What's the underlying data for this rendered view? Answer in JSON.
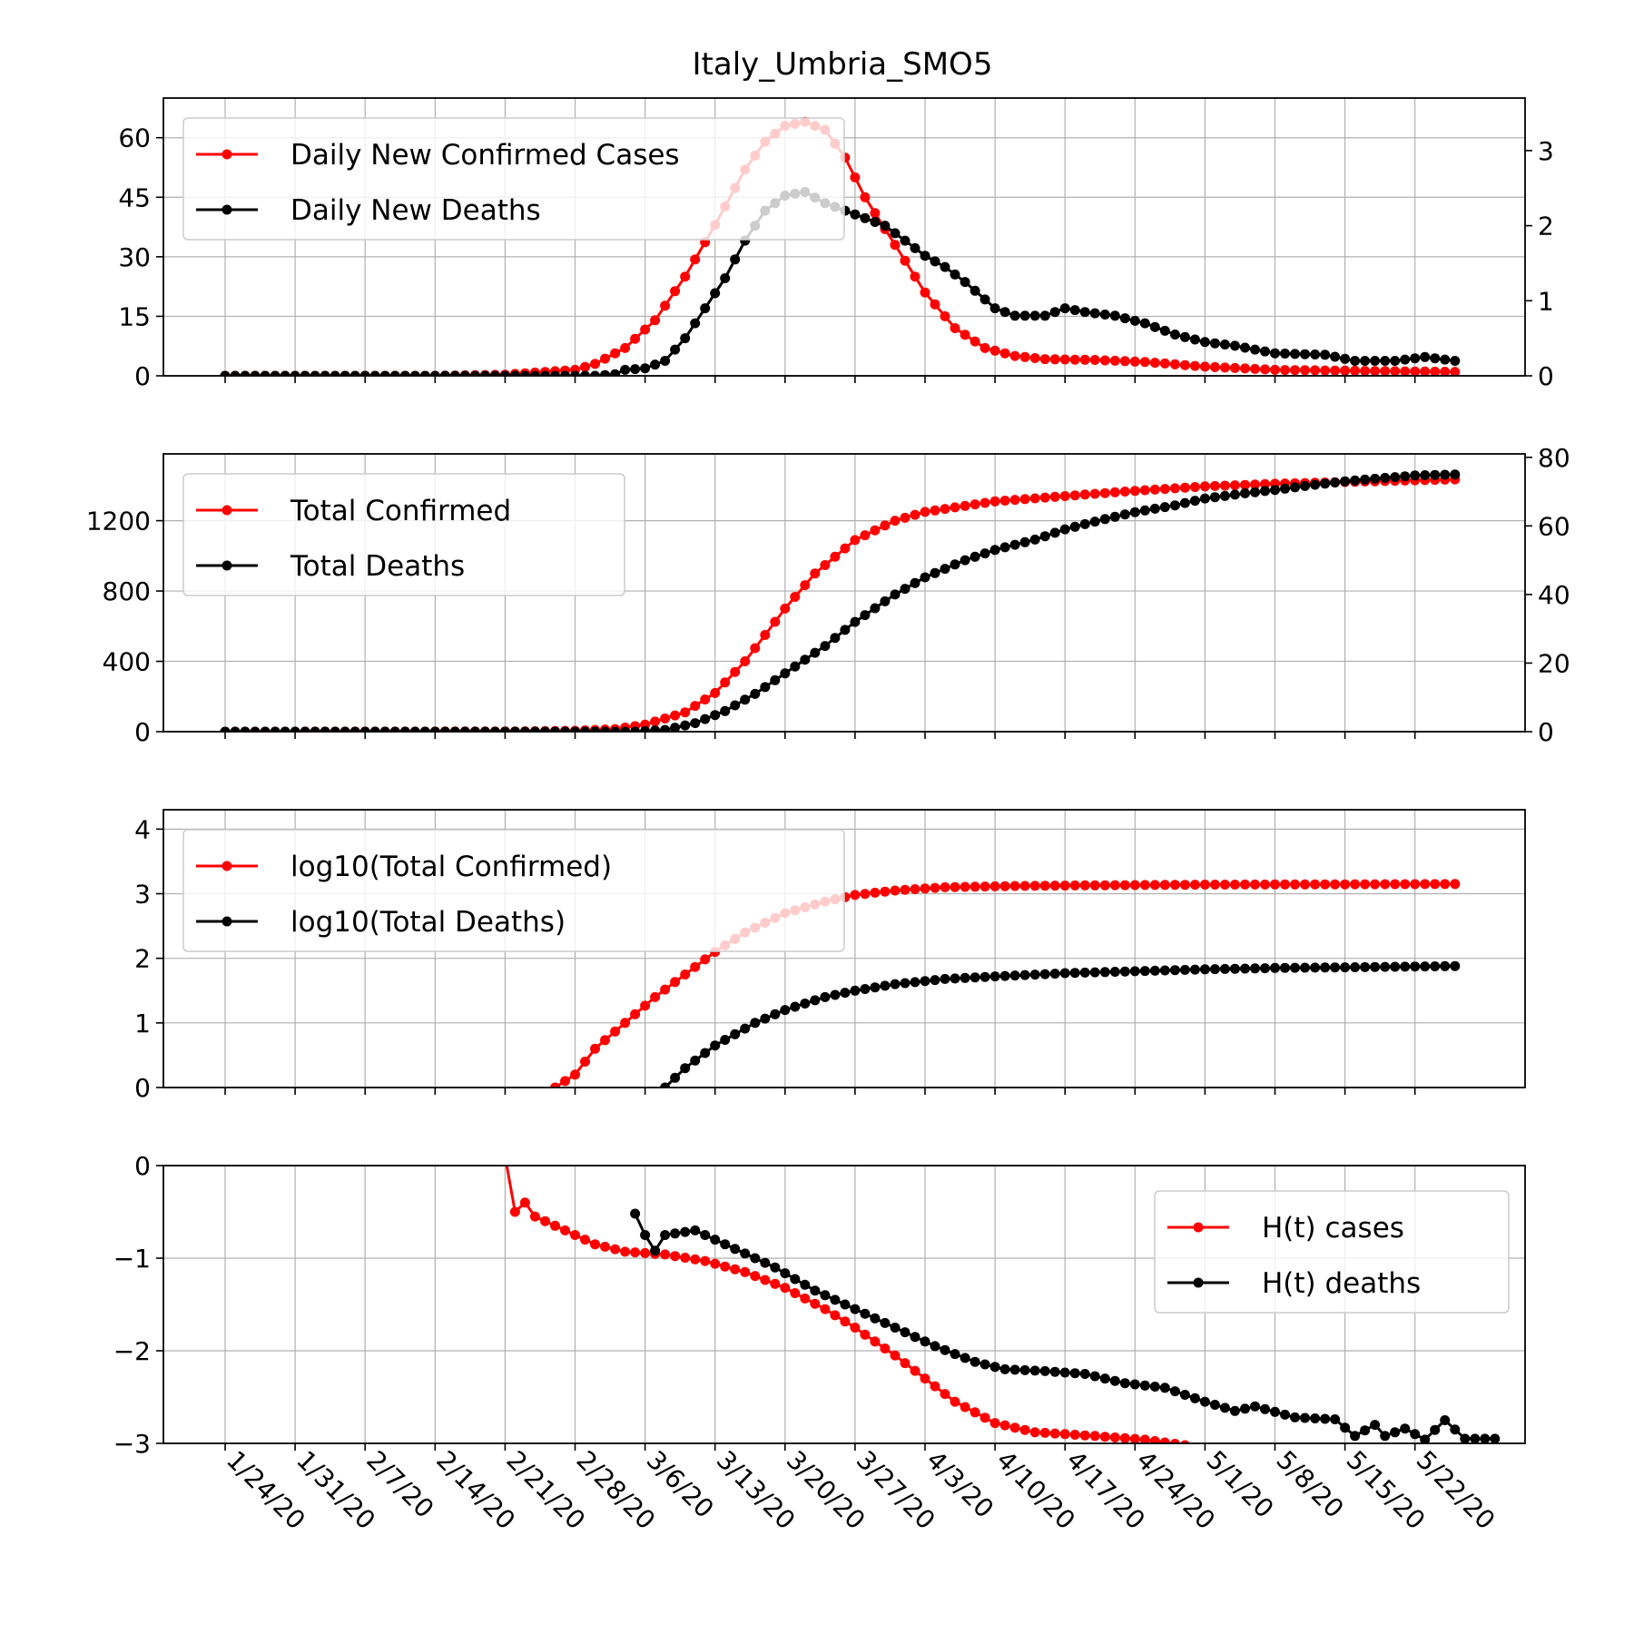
{
  "chart_data": {
    "title": "Italy_Umbria_SMO5",
    "type": "line",
    "x_start": "1/24/20",
    "x_end": "5/26/20",
    "x_tick_labels": [
      "1/24/20",
      "1/31/20",
      "2/7/20",
      "2/14/20",
      "2/21/20",
      "2/28/20",
      "3/6/20",
      "3/13/20",
      "3/20/20",
      "3/27/20",
      "4/3/20",
      "4/10/20",
      "4/17/20",
      "4/24/20",
      "5/1/20",
      "5/8/20",
      "5/15/20",
      "5/22/20"
    ],
    "grid": true,
    "colors": {
      "cases": "#ff0000",
      "deaths": "#000000"
    },
    "panels": [
      {
        "legend_position": "upper-left",
        "left_ylim": [
          0,
          70
        ],
        "left_ticks": [
          0,
          15,
          30,
          45,
          60
        ],
        "right_ylim": [
          0,
          3.7
        ],
        "right_ticks": [
          0,
          1,
          2,
          3
        ],
        "series": [
          {
            "name": "Daily New Confirmed Cases",
            "axis": "left",
            "points": [
              [
                "1/24/20",
                0
              ],
              [
                "2/14/20",
                0
              ],
              [
                "2/21/20",
                0.3
              ],
              [
                "2/28/20",
                1.5
              ],
              [
                "3/1/20",
                3
              ],
              [
                "3/4/20",
                7
              ],
              [
                "3/7/20",
                14
              ],
              [
                "3/10/20",
                25
              ],
              [
                "3/13/20",
                38
              ],
              [
                "3/16/20",
                52
              ],
              [
                "3/18/20",
                59
              ],
              [
                "3/20/20",
                63
              ],
              [
                "3/22/20",
                64
              ],
              [
                "3/24/20",
                62
              ],
              [
                "3/26/20",
                55
              ],
              [
                "3/28/20",
                45
              ],
              [
                "3/31/20",
                33
              ],
              [
                "4/3/20",
                21
              ],
              [
                "4/6/20",
                12
              ],
              [
                "4/9/20",
                7
              ],
              [
                "4/12/20",
                5
              ],
              [
                "4/15/20",
                4.2
              ],
              [
                "4/20/20",
                4
              ],
              [
                "4/25/20",
                3.5
              ],
              [
                "5/1/20",
                2.3
              ],
              [
                "5/8/20",
                1.5
              ],
              [
                "5/15/20",
                1.3
              ],
              [
                "5/22/20",
                1.1
              ],
              [
                "5/26/20",
                1
              ]
            ]
          },
          {
            "name": "Daily New Deaths",
            "axis": "right",
            "points": [
              [
                "1/24/20",
                0
              ],
              [
                "3/1/20",
                0
              ],
              [
                "3/3/20",
                0.02
              ],
              [
                "3/4/20",
                0.08
              ],
              [
                "3/6/20",
                0.1
              ],
              [
                "3/8/20",
                0.2
              ],
              [
                "3/10/20",
                0.5
              ],
              [
                "3/12/20",
                0.9
              ],
              [
                "3/14/20",
                1.3
              ],
              [
                "3/16/20",
                1.8
              ],
              [
                "3/18/20",
                2.2
              ],
              [
                "3/20/20",
                2.4
              ],
              [
                "3/22/20",
                2.45
              ],
              [
                "3/24/20",
                2.3
              ],
              [
                "3/26/20",
                2.2
              ],
              [
                "3/28/20",
                2.1
              ],
              [
                "3/30/20",
                2
              ],
              [
                "4/1/20",
                1.8
              ],
              [
                "4/3/20",
                1.6
              ],
              [
                "4/5/20",
                1.45
              ],
              [
                "4/7/20",
                1.25
              ],
              [
                "4/10/20",
                0.9
              ],
              [
                "4/12/20",
                0.8
              ],
              [
                "4/15/20",
                0.8
              ],
              [
                "4/17/20",
                0.9
              ],
              [
                "4/19/20",
                0.85
              ],
              [
                "4/22/20",
                0.8
              ],
              [
                "4/25/20",
                0.7
              ],
              [
                "4/28/20",
                0.55
              ],
              [
                "5/1/20",
                0.45
              ],
              [
                "5/4/20",
                0.4
              ],
              [
                "5/8/20",
                0.3
              ],
              [
                "5/13/20",
                0.28
              ],
              [
                "5/16/20",
                0.2
              ],
              [
                "5/20/20",
                0.2
              ],
              [
                "5/23/20",
                0.25
              ],
              [
                "5/26/20",
                0.2
              ]
            ]
          }
        ]
      },
      {
        "legend_position": "upper-left",
        "left_ylim": [
          0,
          1580
        ],
        "left_ticks": [
          0,
          400,
          800,
          1200
        ],
        "right_ylim": [
          0,
          81
        ],
        "right_ticks": [
          0,
          20,
          40,
          60,
          80
        ],
        "series": [
          {
            "name": "Total Confirmed",
            "axis": "left",
            "points": [
              [
                "1/24/20",
                0
              ],
              [
                "2/21/20",
                1
              ],
              [
                "2/28/20",
                5
              ],
              [
                "3/3/20",
                15
              ],
              [
                "3/6/20",
                40
              ],
              [
                "3/10/20",
                110
              ],
              [
                "3/13/20",
                220
              ],
              [
                "3/16/20",
                400
              ],
              [
                "3/20/20",
                700
              ],
              [
                "3/23/20",
                900
              ],
              [
                "3/27/20",
                1090
              ],
              [
                "3/31/20",
                1200
              ],
              [
                "4/3/20",
                1250
              ],
              [
                "4/10/20",
                1310
              ],
              [
                "4/17/20",
                1340
              ],
              [
                "4/24/20",
                1370
              ],
              [
                "5/1/20",
                1395
              ],
              [
                "5/8/20",
                1410
              ],
              [
                "5/15/20",
                1420
              ],
              [
                "5/22/20",
                1430
              ],
              [
                "5/26/20",
                1435
              ]
            ]
          },
          {
            "name": "Total Deaths",
            "axis": "right",
            "points": [
              [
                "1/24/20",
                0
              ],
              [
                "3/5/20",
                0
              ],
              [
                "3/8/20",
                0.5
              ],
              [
                "3/11/20",
                2.5
              ],
              [
                "3/14/20",
                6
              ],
              [
                "3/17/20",
                11
              ],
              [
                "3/20/20",
                17
              ],
              [
                "3/24/20",
                25
              ],
              [
                "3/27/20",
                32
              ],
              [
                "3/31/20",
                40
              ],
              [
                "4/3/20",
                45
              ],
              [
                "4/7/20",
                50
              ],
              [
                "4/10/20",
                53
              ],
              [
                "4/14/20",
                56
              ],
              [
                "4/17/20",
                59
              ],
              [
                "4/21/20",
                62
              ],
              [
                "4/24/20",
                64
              ],
              [
                "4/28/20",
                66
              ],
              [
                "5/1/20",
                68
              ],
              [
                "5/5/20",
                69.5
              ],
              [
                "5/8/20",
                70.5
              ],
              [
                "5/12/20",
                72
              ],
              [
                "5/15/20",
                73
              ],
              [
                "5/19/20",
                74
              ],
              [
                "5/22/20",
                74.7
              ],
              [
                "5/26/20",
                75
              ]
            ]
          }
        ]
      },
      {
        "legend_position": "upper-left",
        "left_ylim": [
          0,
          4.3
        ],
        "left_ticks": [
          0,
          1,
          2,
          3,
          4
        ],
        "series": [
          {
            "name": "log10(Total Confirmed)",
            "axis": "left",
            "points": [
              [
                "2/21/20",
                -0.5
              ],
              [
                "2/28/20",
                0.2
              ],
              [
                "3/1/20",
                0.6
              ],
              [
                "3/4/20",
                1.0
              ],
              [
                "3/7/20",
                1.4
              ],
              [
                "3/10/20",
                1.75
              ],
              [
                "3/13/20",
                2.1
              ],
              [
                "3/16/20",
                2.4
              ],
              [
                "3/20/20",
                2.7
              ],
              [
                "3/24/20",
                2.88
              ],
              [
                "3/27/20",
                2.98
              ],
              [
                "3/31/20",
                3.05
              ],
              [
                "4/5/20",
                3.1
              ],
              [
                "4/12/20",
                3.12
              ],
              [
                "4/20/20",
                3.13
              ],
              [
                "5/1/20",
                3.14
              ],
              [
                "5/26/20",
                3.15
              ]
            ]
          },
          {
            "name": "log10(Total Deaths)",
            "axis": "left",
            "points": [
              [
                "3/6/20",
                -0.2
              ],
              [
                "3/8/20",
                0
              ],
              [
                "3/10/20",
                0.3
              ],
              [
                "3/13/20",
                0.65
              ],
              [
                "3/17/20",
                1.0
              ],
              [
                "3/20/20",
                1.2
              ],
              [
                "3/24/20",
                1.4
              ],
              [
                "3/27/20",
                1.5
              ],
              [
                "3/31/20",
                1.6
              ],
              [
                "4/5/20",
                1.68
              ],
              [
                "4/10/20",
                1.72
              ],
              [
                "4/17/20",
                1.77
              ],
              [
                "4/24/20",
                1.8
              ],
              [
                "5/1/20",
                1.83
              ],
              [
                "5/8/20",
                1.85
              ],
              [
                "5/15/20",
                1.86
              ],
              [
                "5/26/20",
                1.88
              ]
            ]
          }
        ]
      },
      {
        "legend_position": "upper-right",
        "left_ylim": [
          -3,
          0
        ],
        "left_ticks": [
          0,
          -1,
          -2,
          -3
        ],
        "left_tick_labels": [
          "0",
          "−1",
          "−2",
          "−3"
        ],
        "series": [
          {
            "name": "H(t) cases",
            "axis": "left",
            "points": [
              [
                "2/21/20",
                0.1
              ],
              [
                "2/22/20",
                -0.5
              ],
              [
                "2/23/20",
                -0.4
              ],
              [
                "2/24/20",
                -0.55
              ],
              [
                "2/27/20",
                -0.7
              ],
              [
                "3/1/20",
                -0.85
              ],
              [
                "3/4/20",
                -0.93
              ],
              [
                "3/8/20",
                -0.96
              ],
              [
                "3/12/20",
                -1.03
              ],
              [
                "3/16/20",
                -1.15
              ],
              [
                "3/20/20",
                -1.32
              ],
              [
                "3/24/20",
                -1.55
              ],
              [
                "3/27/20",
                -1.75
              ],
              [
                "3/31/20",
                -2.05
              ],
              [
                "4/3/20",
                -2.3
              ],
              [
                "4/6/20",
                -2.55
              ],
              [
                "4/10/20",
                -2.78
              ],
              [
                "4/14/20",
                -2.88
              ],
              [
                "4/20/20",
                -2.92
              ],
              [
                "4/25/20",
                -2.96
              ],
              [
                "4/29/20",
                -3.02
              ]
            ]
          },
          {
            "name": "H(t) deaths",
            "axis": "left",
            "points": [
              [
                "3/5/20",
                -0.52
              ],
              [
                "3/6/20",
                -0.75
              ],
              [
                "3/7/20",
                -0.92
              ],
              [
                "3/8/20",
                -0.75
              ],
              [
                "3/11/20",
                -0.7
              ],
              [
                "3/15/20",
                -0.9
              ],
              [
                "3/19/20",
                -1.1
              ],
              [
                "3/23/20",
                -1.35
              ],
              [
                "3/27/20",
                -1.55
              ],
              [
                "3/31/20",
                -1.75
              ],
              [
                "4/4/20",
                -1.95
              ],
              [
                "4/8/20",
                -2.12
              ],
              [
                "4/11/20",
                -2.2
              ],
              [
                "4/15/20",
                -2.22
              ],
              [
                "4/19/20",
                -2.25
              ],
              [
                "4/23/20",
                -2.35
              ],
              [
                "4/27/20",
                -2.4
              ],
              [
                "5/1/20",
                -2.55
              ],
              [
                "5/4/20",
                -2.65
              ],
              [
                "5/6/20",
                -2.6
              ],
              [
                "5/10/20",
                -2.72
              ],
              [
                "5/14/20",
                -2.74
              ],
              [
                "5/16/20",
                -2.92
              ],
              [
                "5/18/20",
                -2.8
              ],
              [
                "5/19/20",
                -2.92
              ],
              [
                "5/21/20",
                -2.84
              ],
              [
                "5/23/20",
                -2.96
              ],
              [
                "5/25/20",
                -2.75
              ],
              [
                "5/27/20",
                -2.95
              ],
              [
                "5/30/20",
                -2.95
              ]
            ]
          }
        ]
      }
    ]
  }
}
